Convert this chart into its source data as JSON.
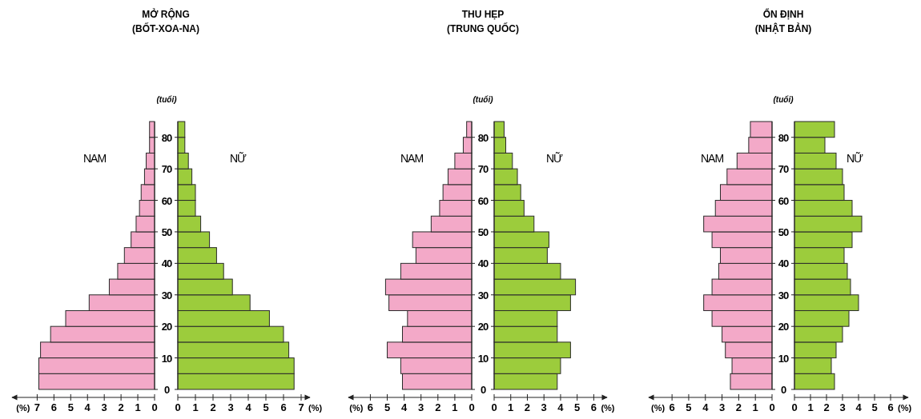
{
  "chart_data": [
    {
      "type": "histogram",
      "orientation": "horizontal",
      "title": "MỞ RỘNG",
      "subtitle": "(BỐT-XOA-NA)",
      "xlabel": "(%)",
      "bins": [
        0,
        5,
        10,
        15,
        20,
        25,
        30,
        35,
        40,
        45,
        50,
        55,
        60,
        65,
        70,
        75,
        80,
        85
      ],
      "series": [
        {
          "name": "NAM",
          "color": "#f3a9c8",
          "values": [
            6.9,
            6.9,
            6.8,
            6.2,
            5.3,
            3.9,
            2.7,
            2.2,
            1.8,
            1.4,
            1.1,
            0.9,
            0.8,
            0.6,
            0.5,
            0.3,
            0.3
          ]
        }
      ],
      "xlim": [
        8.5,
        0
      ],
      "xticks": [
        7,
        6,
        5,
        4,
        3,
        2,
        1,
        0
      ],
      "ylim": [
        0,
        85
      ],
      "yticks": [
        0,
        10,
        20,
        30,
        40,
        50,
        60,
        70,
        80
      ],
      "tick_labels": "x"
    },
    {
      "type": "histogram",
      "orientation": "horizontal",
      "ylabel": "(tuổi)",
      "xlabel": "(%)",
      "bins": [
        0,
        5,
        10,
        15,
        20,
        25,
        30,
        35,
        40,
        45,
        50,
        55,
        60,
        65,
        70,
        75,
        80,
        85
      ],
      "series": [
        {
          "name": "NỮ",
          "color": "#9ccc3c",
          "values": [
            6.6,
            6.6,
            6.3,
            6.0,
            5.2,
            4.1,
            3.1,
            2.6,
            2.2,
            1.8,
            1.3,
            1.0,
            1.0,
            0.8,
            0.6,
            0.4,
            0.4
          ]
        }
      ],
      "xlim": [
        0,
        7.5
      ],
      "xticks": [
        0,
        1,
        2,
        3,
        4,
        5,
        6,
        7
      ],
      "ylim": [
        0,
        85
      ],
      "yticks": [
        0,
        10,
        20,
        30,
        40,
        50,
        60,
        70,
        80
      ]
    },
    {
      "type": "histogram",
      "orientation": "horizontal",
      "title": "THU HẸP",
      "subtitle": "(TRUNG QUỐC)",
      "xlabel": "(%)",
      "bins": [
        0,
        5,
        10,
        15,
        20,
        25,
        30,
        35,
        40,
        45,
        50,
        55,
        60,
        65,
        70,
        75,
        80,
        85
      ],
      "series": [
        {
          "name": "NAM",
          "color": "#f3a9c8",
          "values": [
            4.1,
            4.2,
            5.0,
            4.1,
            3.8,
            4.9,
            5.1,
            4.2,
            3.3,
            3.5,
            2.4,
            1.9,
            1.7,
            1.4,
            1.0,
            0.5,
            0.3
          ]
        }
      ],
      "xlim": [
        7.3,
        0
      ],
      "xticks": [
        6,
        5,
        4,
        3,
        2,
        1,
        0
      ],
      "ylim": [
        0,
        85
      ],
      "yticks": [
        0,
        10,
        20,
        30,
        40,
        50,
        60,
        70,
        80
      ],
      "tick_labels": "x"
    },
    {
      "type": "histogram",
      "orientation": "horizontal",
      "ylabel": "(tuổi)",
      "xlabel": "(%)",
      "bins": [
        0,
        5,
        10,
        15,
        20,
        25,
        30,
        35,
        40,
        45,
        50,
        55,
        60,
        65,
        70,
        75,
        80,
        85
      ],
      "series": [
        {
          "name": "NỮ",
          "color": "#9ccc3c",
          "values": [
            3.8,
            4.0,
            4.6,
            3.8,
            3.8,
            4.6,
            4.9,
            4.0,
            3.2,
            3.3,
            2.4,
            1.8,
            1.6,
            1.4,
            1.1,
            0.7,
            0.6
          ]
        }
      ],
      "xlim": [
        0,
        6.8
      ],
      "xticks": [
        0,
        1,
        2,
        3,
        4,
        5,
        6
      ],
      "ylim": [
        0,
        85
      ],
      "yticks": [
        0,
        10,
        20,
        30,
        40,
        50,
        60,
        70,
        80
      ]
    },
    {
      "type": "histogram",
      "orientation": "horizontal",
      "title": "ỔN ĐỊNH",
      "subtitle": "(NHẬT BẢN)",
      "xlabel": "(%)",
      "bins": [
        0,
        5,
        10,
        15,
        20,
        25,
        30,
        35,
        40,
        45,
        50,
        55,
        60,
        65,
        70,
        75,
        80,
        85
      ],
      "series": [
        {
          "name": "NAM",
          "color": "#f3a9c8",
          "values": [
            2.5,
            2.4,
            2.8,
            3.0,
            3.6,
            4.1,
            3.6,
            3.2,
            3.1,
            3.6,
            4.1,
            3.4,
            3.1,
            2.7,
            2.1,
            1.4,
            1.3
          ]
        }
      ],
      "xlim": [
        7.4,
        0
      ],
      "xticks": [
        6,
        5,
        4,
        3,
        2,
        1,
        0
      ],
      "ylim": [
        0,
        85
      ],
      "yticks": [
        0,
        10,
        20,
        30,
        40,
        50,
        60,
        70,
        80
      ],
      "tick_labels": "x"
    },
    {
      "type": "histogram",
      "orientation": "horizontal",
      "ylabel": "(tuổi)",
      "xlabel": "(%)",
      "bins": [
        0,
        5,
        10,
        15,
        20,
        25,
        30,
        35,
        40,
        45,
        50,
        55,
        60,
        65,
        70,
        75,
        80,
        85
      ],
      "series": [
        {
          "name": "NỮ",
          "color": "#9ccc3c",
          "values": [
            2.5,
            2.3,
            2.6,
            3.0,
            3.4,
            4.0,
            3.5,
            3.3,
            3.1,
            3.6,
            4.2,
            3.6,
            3.1,
            3.0,
            2.6,
            1.9,
            2.5
          ]
        }
      ],
      "xlim": [
        0,
        7.1
      ],
      "xticks": [
        0,
        1,
        2,
        3,
        4,
        5,
        6
      ],
      "ylim": [
        0,
        85
      ],
      "yticks": [
        0,
        10,
        20,
        30,
        40,
        50,
        60,
        70,
        80
      ]
    }
  ]
}
